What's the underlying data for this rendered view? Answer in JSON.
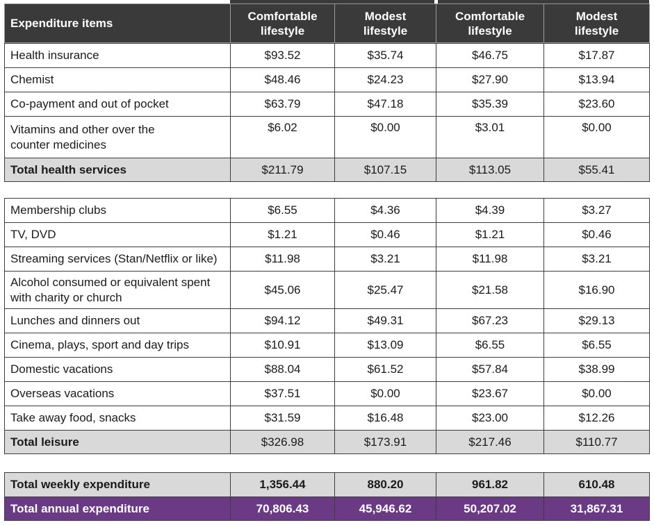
{
  "header": {
    "item_col": "Expenditure items",
    "cols": [
      {
        "l1": "Comfortable",
        "l2": "lifestyle"
      },
      {
        "l1": "Modest",
        "l2": "lifestyle"
      },
      {
        "l1": "Comfortable",
        "l2": "lifestyle"
      },
      {
        "l1": "Modest",
        "l2": "lifestyle"
      }
    ]
  },
  "health": {
    "rows": [
      {
        "label": "Health insurance",
        "v": [
          "$93.52",
          "$35.74",
          "$46.75",
          "$17.87"
        ]
      },
      {
        "label": "Chemist",
        "v": [
          "$48.46",
          "$24.23",
          "$27.90",
          "$13.94"
        ]
      },
      {
        "label": "Co-payment and out of pocket",
        "v": [
          "$63.79",
          "$47.18",
          "$35.39",
          "$23.60"
        ]
      },
      {
        "label_l1": "Vitamins and other over the",
        "label_l2": "counter medicines",
        "v": [
          "$6.02",
          "$0.00",
          "$3.01",
          "$0.00"
        ]
      }
    ],
    "total": {
      "label": "Total health services",
      "v": [
        "$211.79",
        "$107.15",
        "$113.05",
        "$55.41"
      ]
    }
  },
  "leisure": {
    "rows": [
      {
        "label": "Membership clubs",
        "v": [
          "$6.55",
          "$4.36",
          "$4.39",
          "$3.27"
        ]
      },
      {
        "label": "TV, DVD",
        "v": [
          "$1.21",
          "$0.46",
          "$1.21",
          "$0.46"
        ]
      },
      {
        "label": "Streaming services (Stan/Netflix or like)",
        "v": [
          "$11.98",
          "$3.21",
          "$11.98",
          "$3.21"
        ]
      },
      {
        "label_l1": "Alcohol consumed or equivalent spent",
        "label_l2": "with charity or church",
        "v": [
          "$45.06",
          "$25.47",
          "$21.58",
          "$16.90"
        ]
      },
      {
        "label": "Lunches and dinners out",
        "v": [
          "$94.12",
          "$49.31",
          "$67.23",
          "$29.13"
        ]
      },
      {
        "label": "Cinema, plays, sport and day trips",
        "v": [
          "$10.91",
          "$13.09",
          "$6.55",
          "$6.55"
        ]
      },
      {
        "label": "Domestic vacations",
        "v": [
          "$88.04",
          "$61.52",
          "$57.84",
          "$38.99"
        ]
      },
      {
        "label": "Overseas vacations",
        "v": [
          "$37.51",
          "$0.00",
          "$23.67",
          "$0.00"
        ]
      },
      {
        "label": "Take away food, snacks",
        "v": [
          "$31.59",
          "$16.48",
          "$23.00",
          "$12.26"
        ]
      }
    ],
    "total": {
      "label": "Total leisure",
      "v": [
        "$326.98",
        "$173.91",
        "$217.46",
        "$110.77"
      ]
    }
  },
  "totals": {
    "weekly": {
      "label": "Total weekly expenditure",
      "v": [
        "1,356.44",
        "880.20",
        "961.82",
        "610.48"
      ]
    },
    "annual": {
      "label": "Total annual expenditure",
      "v": [
        "70,806.43",
        "45,946.62",
        "50,207.02",
        "31,867.31"
      ]
    }
  }
}
